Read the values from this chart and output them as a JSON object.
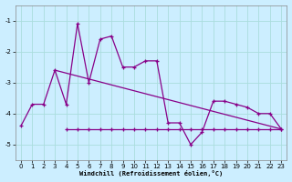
{
  "xlabel": "Windchill (Refroidissement éolien,°C)",
  "bg_color": "#cceeff",
  "grid_color": "#aadddd",
  "line_color": "#880088",
  "xlim": [
    -0.5,
    23.5
  ],
  "ylim": [
    -5.5,
    -0.5
  ],
  "yticks": [
    -5,
    -4,
    -3,
    -2,
    -1
  ],
  "xticks": [
    0,
    1,
    2,
    3,
    4,
    5,
    6,
    7,
    8,
    9,
    10,
    11,
    12,
    13,
    14,
    15,
    16,
    17,
    18,
    19,
    20,
    21,
    22,
    23
  ],
  "line1_x": [
    0,
    1,
    2,
    3,
    4,
    5,
    6,
    7,
    8,
    9,
    10,
    11,
    12,
    13,
    14,
    15,
    16,
    17,
    18,
    19,
    20,
    21,
    22,
    23
  ],
  "line1_y": [
    -4.4,
    -3.7,
    -3.7,
    -2.6,
    -3.7,
    -1.1,
    -3.0,
    -1.6,
    -1.5,
    -2.5,
    -2.5,
    -2.3,
    -2.3,
    -4.3,
    -4.3,
    -5.0,
    -4.6,
    -3.6,
    -3.6,
    -3.7,
    -3.8,
    -4.0,
    -4.0,
    -4.5
  ],
  "line2_x": [
    4,
    5,
    6,
    7,
    8,
    9,
    10,
    11,
    12,
    13,
    14,
    15,
    16,
    17,
    18,
    19,
    20,
    21,
    22,
    23
  ],
  "line2_y": [
    -4.5,
    -4.5,
    -4.5,
    -4.5,
    -4.5,
    -4.5,
    -4.5,
    -4.5,
    -4.5,
    -4.5,
    -4.5,
    -4.5,
    -4.5,
    -4.5,
    -4.5,
    -4.5,
    -4.5,
    -4.5,
    -4.5,
    -4.5
  ],
  "line3_x": [
    3,
    23
  ],
  "line3_y": [
    -2.6,
    -4.5
  ],
  "marker": "+"
}
